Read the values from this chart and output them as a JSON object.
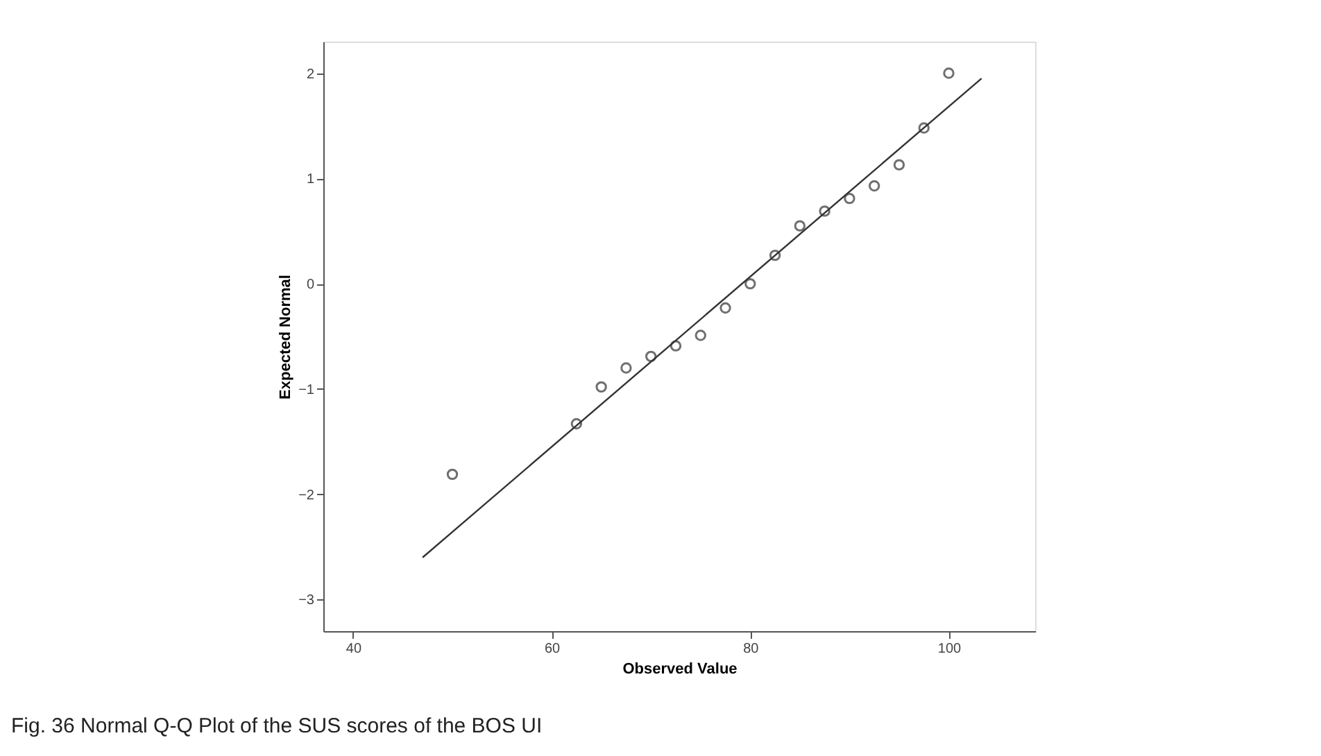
{
  "chart_data": {
    "type": "scatter",
    "xlabel": "Observed Value",
    "ylabel": "Expected Normal",
    "annotations": [
      "Fig. 36  Normal Q-Q Plot of the SUS scores of the BOS UI"
    ],
    "x": [
      50,
      62.5,
      65,
      67.5,
      70,
      72.5,
      75,
      77.5,
      80,
      82.5,
      85,
      87.5,
      90,
      92.5,
      95,
      97.5,
      100
    ],
    "series": [
      {
        "type": "scatter",
        "color": "#333333",
        "marker": "circle",
        "values": [
          -1.81,
          -1.33,
          -0.98,
          -0.8,
          -0.69,
          -0.59,
          -0.49,
          -0.23,
          0.0,
          0.27,
          0.55,
          0.69,
          0.81,
          0.93,
          1.13,
          1.48,
          2.0
        ]
      },
      {
        "type": "line",
        "color": "#333333",
        "line_style": "solid",
        "x": [
          47,
          103.3
        ],
        "values": [
          -2.6,
          1.95
        ]
      }
    ],
    "xlim": [
      37,
      108.7
    ],
    "ylim": [
      -3.3,
      2.3
    ],
    "xticks": [
      40,
      60,
      80,
      100
    ],
    "yticks": [
      -3,
      -2,
      -1,
      0,
      1,
      2
    ],
    "grid": false
  }
}
